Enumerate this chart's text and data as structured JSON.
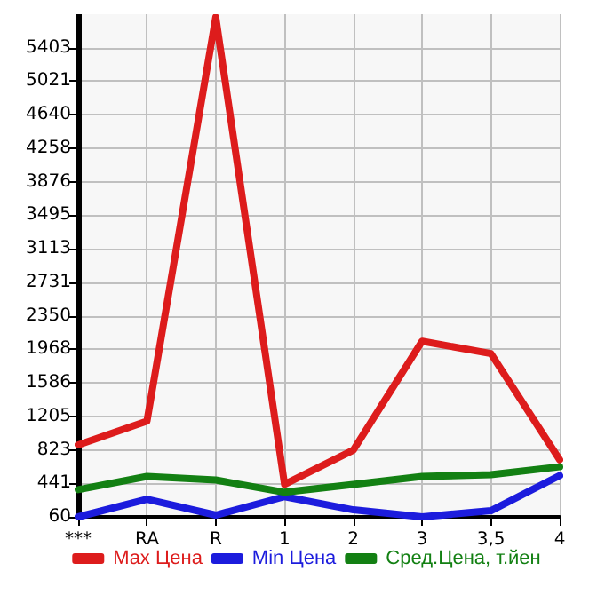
{
  "chart_data": {
    "type": "line",
    "categories": [
      "***",
      "RA",
      "R",
      "1",
      "2",
      "3",
      "3,5",
      "4"
    ],
    "series": [
      {
        "name": "Max Цена",
        "color": "#dd1c1c",
        "values": [
          880,
          1150,
          5750,
          430,
          820,
          2060,
          1920,
          710
        ]
      },
      {
        "name": "Min Цена",
        "color": "#1c1cdd",
        "values": [
          60,
          260,
          80,
          290,
          140,
          60,
          130,
          530
        ]
      },
      {
        "name": "Сред.Цена, т.йен",
        "color": "#138013",
        "values": [
          370,
          520,
          480,
          340,
          430,
          520,
          540,
          630
        ]
      }
    ],
    "ylim": [
      60,
      5784
    ],
    "yticks": [
      60,
      441,
      823,
      1205,
      1586,
      1968,
      2350,
      2731,
      3113,
      3495,
      3876,
      4258,
      4640,
      5021,
      5403
    ],
    "grid": true,
    "legend": "bottom",
    "marker": "none",
    "line_style": "solid"
  }
}
